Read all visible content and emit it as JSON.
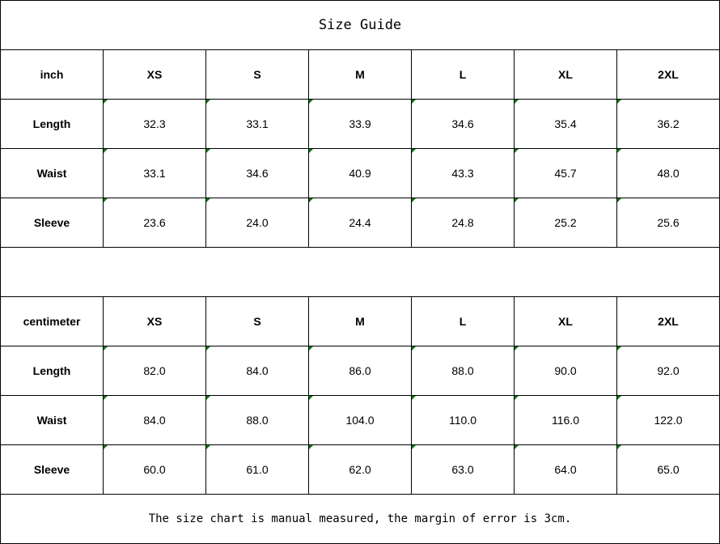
{
  "title": "Size Guide",
  "sizes": [
    "XS",
    "S",
    "M",
    "L",
    "XL",
    "2XL"
  ],
  "inch": {
    "unit_label": "inch",
    "rows": [
      {
        "label": "Length",
        "values": [
          "32.3",
          "33.1",
          "33.9",
          "34.6",
          "35.4",
          "36.2"
        ]
      },
      {
        "label": "Waist",
        "values": [
          "33.1",
          "34.6",
          "40.9",
          "43.3",
          "45.7",
          "48.0"
        ]
      },
      {
        "label": "Sleeve",
        "values": [
          "23.6",
          "24.0",
          "24.4",
          "24.8",
          "25.2",
          "25.6"
        ]
      }
    ]
  },
  "centimeter": {
    "unit_label": "centimeter",
    "rows": [
      {
        "label": "Length",
        "values": [
          "82.0",
          "84.0",
          "86.0",
          "88.0",
          "90.0",
          "92.0"
        ]
      },
      {
        "label": "Waist",
        "values": [
          "84.0",
          "88.0",
          "104.0",
          "110.0",
          "116.0",
          "122.0"
        ]
      },
      {
        "label": "Sleeve",
        "values": [
          "60.0",
          "61.0",
          "62.0",
          "63.0",
          "64.0",
          "65.0"
        ]
      }
    ]
  },
  "note": "The size chart is manual measured, the margin of error is 3cm.",
  "colors": {
    "cell_marker": "#0a7a0a",
    "border": "#000000"
  }
}
